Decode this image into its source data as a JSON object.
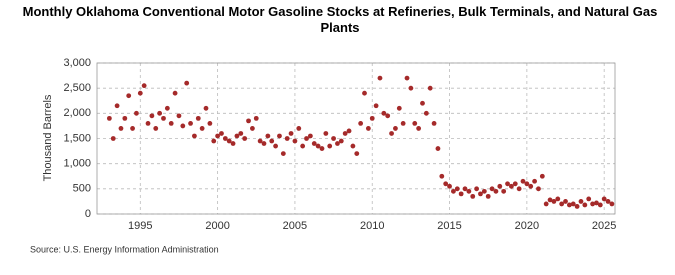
{
  "chart_data": {
    "type": "scatter",
    "title": "Monthly Oklahoma Conventional Motor Gasoline Stocks at Refineries, Bulk Terminals, and Natural Gas Plants",
    "y_label": "Thousand Barrels",
    "source": "Source: U.S. Energy Information Administration",
    "color": "#a52a2a",
    "grid": true,
    "xlim": [
      1992.2,
      2025.7
    ],
    "xticks": [
      1995,
      2000,
      2005,
      2010,
      2015,
      2020,
      2025
    ],
    "ylim": [
      0,
      3000
    ],
    "yticks": [
      0,
      500,
      {
        "value": 1000,
        "label": "1,000"
      },
      {
        "value": 1500,
        "label": "1,500"
      },
      {
        "value": 2000,
        "label": "2,000"
      },
      {
        "value": 2500,
        "label": "2,500"
      },
      {
        "value": 3000,
        "label": "3,000"
      }
    ],
    "x": [
      1993.0,
      1993.25,
      1993.5,
      1993.75,
      1994.0,
      1994.25,
      1994.5,
      1994.75,
      1995.0,
      1995.25,
      1995.5,
      1995.75,
      1996.0,
      1996.25,
      1996.5,
      1996.75,
      1997.0,
      1997.25,
      1997.5,
      1997.75,
      1998.0,
      1998.25,
      1998.5,
      1998.75,
      1999.0,
      1999.25,
      1999.5,
      1999.75,
      2000.0,
      2000.25,
      2000.5,
      2000.75,
      2001.0,
      2001.25,
      2001.5,
      2001.75,
      2002.0,
      2002.25,
      2002.5,
      2002.75,
      2003.0,
      2003.25,
      2003.5,
      2003.75,
      2004.0,
      2004.25,
      2004.5,
      2004.75,
      2005.0,
      2005.25,
      2005.5,
      2005.75,
      2006.0,
      2006.25,
      2006.5,
      2006.75,
      2007.0,
      2007.25,
      2007.5,
      2007.75,
      2008.0,
      2008.25,
      2008.5,
      2008.75,
      2009.0,
      2009.25,
      2009.5,
      2009.75,
      2010.0,
      2010.25,
      2010.5,
      2010.75,
      2011.0,
      2011.25,
      2011.5,
      2011.75,
      2012.0,
      2012.25,
      2012.5,
      2012.75,
      2013.0,
      2013.25,
      2013.5,
      2013.75,
      2014.0,
      2014.25,
      2014.5,
      2014.75,
      2015.0,
      2015.25,
      2015.5,
      2015.75,
      2016.0,
      2016.25,
      2016.5,
      2016.75,
      2017.0,
      2017.25,
      2017.5,
      2017.75,
      2018.0,
      2018.25,
      2018.5,
      2018.75,
      2019.0,
      2019.25,
      2019.5,
      2019.75,
      2020.0,
      2020.25,
      2020.5,
      2020.75,
      2021.0,
      2021.25,
      2021.5,
      2021.75,
      2022.0,
      2022.25,
      2022.5,
      2022.75,
      2023.0,
      2023.25,
      2023.5,
      2023.75,
      2024.0,
      2024.25,
      2024.5,
      2024.75,
      2025.0,
      2025.25,
      2025.5
    ],
    "values": [
      1900,
      1500,
      2150,
      1700,
      1900,
      2350,
      1700,
      2000,
      2400,
      2550,
      1800,
      1950,
      1700,
      2000,
      1900,
      2100,
      1800,
      2400,
      1950,
      1750,
      2600,
      1800,
      1550,
      1900,
      1700,
      2100,
      1800,
      1450,
      1550,
      1600,
      1500,
      1450,
      1400,
      1550,
      1600,
      1500,
      1850,
      1700,
      1900,
      1450,
      1400,
      1550,
      1450,
      1350,
      1550,
      1200,
      1500,
      1600,
      1450,
      1700,
      1350,
      1500,
      1550,
      1400,
      1350,
      1300,
      1600,
      1350,
      1500,
      1400,
      1450,
      1600,
      1650,
      1350,
      1200,
      1800,
      2400,
      1700,
      1900,
      2150,
      2700,
      2000,
      1950,
      1600,
      1700,
      2100,
      1800,
      2700,
      2500,
      1800,
      1700,
      2200,
      2000,
      2500,
      1800,
      1300,
      750,
      600,
      550,
      450,
      500,
      400,
      500,
      450,
      350,
      500,
      400,
      450,
      350,
      500,
      450,
      550,
      450,
      600,
      550,
      600,
      500,
      650,
      600,
      550,
      650,
      500,
      750,
      200,
      280,
      250,
      300,
      200,
      250,
      180,
      200,
      150,
      250,
      180,
      300,
      200,
      220,
      180,
      300,
      250,
      200
    ]
  }
}
